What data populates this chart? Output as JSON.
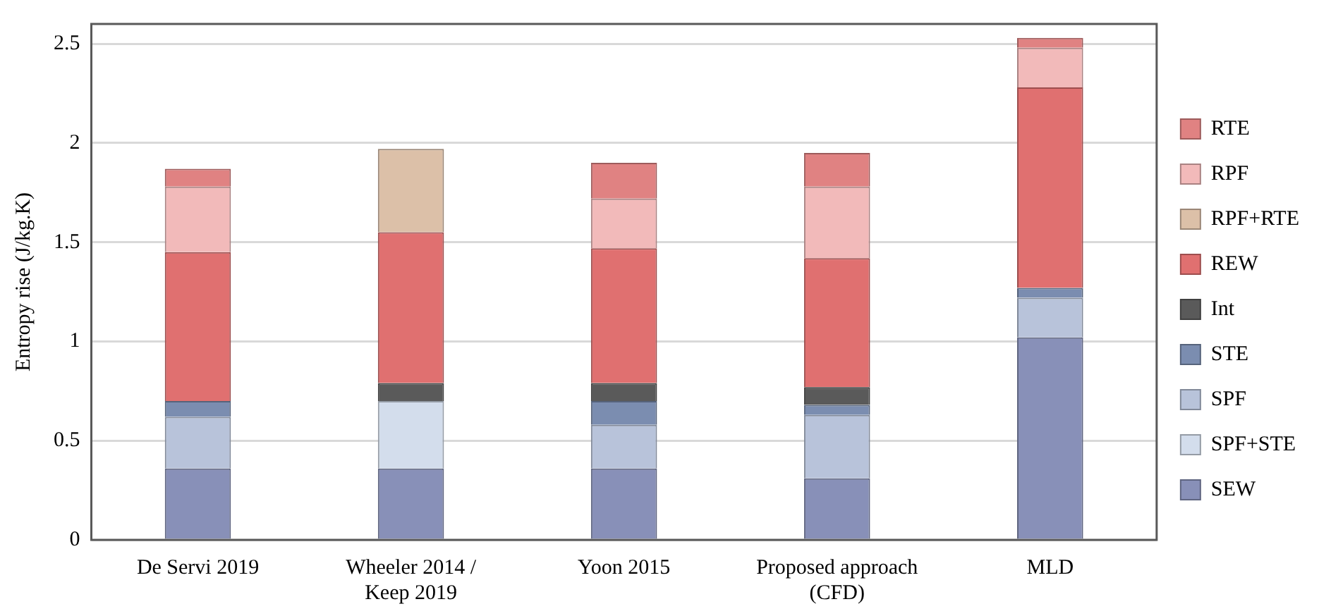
{
  "chart_data": {
    "type": "bar",
    "stacked": true,
    "ylabel": "Entropy rise (J/kg.K)",
    "categories": [
      "De Servi 2019",
      "Wheeler 2014 / Keep 2019",
      "Yoon 2015",
      "Proposed approach (CFD)",
      "MLD"
    ],
    "ylim": [
      0,
      2.6
    ],
    "yticks": [
      0,
      0.5,
      1,
      1.5,
      2,
      2.5
    ],
    "grid": "y",
    "legend": "right",
    "series": [
      {
        "name": "SEW",
        "color": "#8890b8",
        "values": [
          0.36,
          0.36,
          0.36,
          0.31,
          1.02
        ]
      },
      {
        "name": "SPF+STE",
        "color": "#d3ddec",
        "values": [
          null,
          0.34,
          null,
          null,
          null
        ]
      },
      {
        "name": "SPF",
        "color": "#b8c3da",
        "values": [
          0.26,
          null,
          0.22,
          0.32,
          0.2
        ]
      },
      {
        "name": "STE",
        "color": "#7b8db0",
        "values": [
          0.08,
          null,
          0.12,
          0.05,
          0.05
        ]
      },
      {
        "name": "Int",
        "color": "#5a5a5a",
        "values": [
          null,
          0.09,
          0.09,
          0.09,
          null
        ]
      },
      {
        "name": "REW",
        "color": "#e07070",
        "values": [
          0.75,
          0.76,
          0.68,
          0.65,
          1.01
        ]
      },
      {
        "name": "RPF+RTE",
        "color": "#dcc0a8",
        "values": [
          null,
          0.42,
          null,
          null,
          null
        ]
      },
      {
        "name": "RPF",
        "color": "#f2baba",
        "values": [
          0.33,
          null,
          0.25,
          0.36,
          0.2
        ]
      },
      {
        "name": "RTE",
        "color": "#e08282",
        "values": [
          0.09,
          null,
          0.18,
          0.17,
          0.05
        ]
      }
    ]
  }
}
